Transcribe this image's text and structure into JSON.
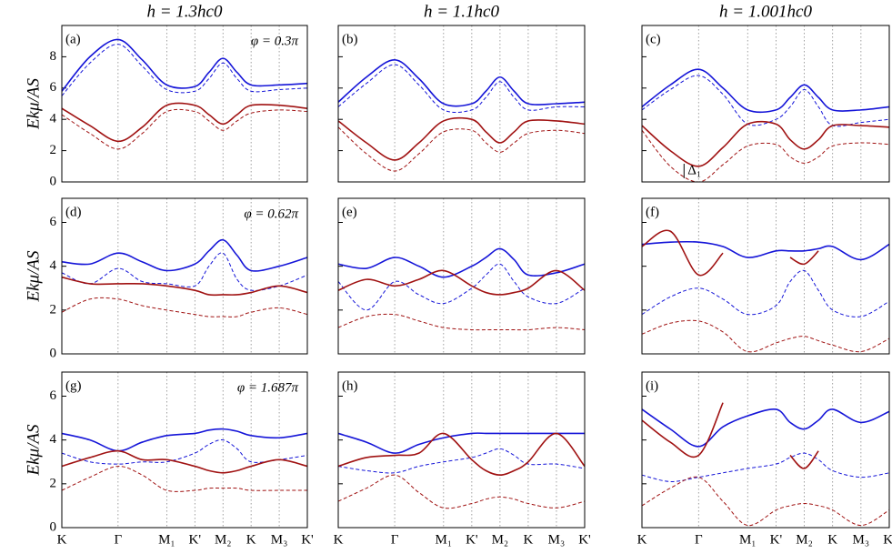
{
  "chart_data": [
    {
      "type": "line",
      "panel": "(a)",
      "title": "h = 1.3hc0",
      "ylabel": "Ekμ/AS",
      "annotation": "φ = 0.3π",
      "x": [
        0,
        0.5,
        1,
        1.43,
        1.866,
        2.366,
        2.616,
        2.866,
        3.116,
        3.366,
        3.866,
        4.366
      ],
      "xlim": [
        0,
        4.366
      ],
      "xticks": [
        0,
        1,
        1.866,
        2.366,
        2.866,
        3.366,
        3.866,
        4.366
      ],
      "ylim": [
        0,
        10
      ],
      "yticks": [
        0,
        2,
        4,
        6,
        8
      ],
      "series": [
        {
          "color": "#1515d8",
          "dashed": false,
          "values": [
            5.8,
            8,
            9.1,
            7.8,
            6.2,
            6.1,
            7.0,
            7.9,
            7.0,
            6.2,
            6.2,
            6.3
          ]
        },
        {
          "color": "#1515d8",
          "dashed": true,
          "values": [
            5.5,
            7.6,
            8.8,
            7.4,
            5.9,
            5.8,
            6.6,
            7.6,
            6.6,
            5.8,
            5.9,
            6.0
          ]
        },
        {
          "color": "#a01212",
          "dashed": false,
          "values": [
            4.7,
            3.6,
            2.6,
            3.5,
            4.9,
            4.9,
            4.3,
            3.7,
            4.3,
            4.9,
            4.9,
            4.7
          ]
        },
        {
          "color": "#a01212",
          "dashed": true,
          "values": [
            4.3,
            3.1,
            2.1,
            3.1,
            4.5,
            4.5,
            3.9,
            3.3,
            3.9,
            4.4,
            4.6,
            4.5
          ]
        }
      ]
    },
    {
      "type": "line",
      "panel": "(b)",
      "title": "h = 1.1hc0",
      "x": [
        0,
        0.5,
        1,
        1.43,
        1.866,
        2.366,
        2.616,
        2.866,
        3.116,
        3.366,
        3.866,
        4.366
      ],
      "xlim": [
        0,
        4.366
      ],
      "xticks": [
        0,
        1,
        1.866,
        2.366,
        2.866,
        3.366,
        3.866,
        4.366
      ],
      "ylim": [
        0,
        10
      ],
      "yticks": [
        0,
        2,
        4,
        6,
        8
      ],
      "series": [
        {
          "color": "#1515d8",
          "dashed": false,
          "values": [
            5.1,
            6.7,
            7.8,
            6.6,
            5.0,
            5.0,
            5.8,
            6.7,
            5.8,
            5.0,
            5.0,
            5.1
          ]
        },
        {
          "color": "#1515d8",
          "dashed": true,
          "values": [
            4.8,
            6.3,
            7.5,
            6.2,
            4.6,
            4.6,
            5.4,
            6.4,
            5.4,
            4.6,
            4.8,
            4.8
          ]
        },
        {
          "color": "#a01212",
          "dashed": false,
          "values": [
            3.9,
            2.5,
            1.4,
            2.5,
            3.9,
            4.0,
            3.2,
            2.5,
            3.2,
            3.9,
            3.9,
            3.7
          ]
        },
        {
          "color": "#a01212",
          "dashed": true,
          "values": [
            3.5,
            1.8,
            0.7,
            1.8,
            3.2,
            3.3,
            2.5,
            1.9,
            2.5,
            3.1,
            3.3,
            3.1
          ]
        }
      ]
    },
    {
      "type": "line",
      "panel": "(c)",
      "title": "h = 1.001hc0",
      "marker_label": "Δ₁",
      "x": [
        0,
        0.5,
        1,
        1.43,
        1.866,
        2.366,
        2.616,
        2.866,
        3.116,
        3.366,
        3.866,
        4.366
      ],
      "xlim": [
        0,
        4.366
      ],
      "xticks": [
        0,
        1,
        1.866,
        2.366,
        2.866,
        3.366,
        3.866,
        4.366
      ],
      "ylim": [
        0,
        10
      ],
      "yticks": [
        0,
        2,
        4,
        6,
        8
      ],
      "series": [
        {
          "color": "#1515d8",
          "dashed": false,
          "values": [
            4.8,
            6.2,
            7.2,
            6.0,
            4.6,
            4.6,
            5.4,
            6.2,
            5.4,
            4.6,
            4.6,
            4.8
          ]
        },
        {
          "color": "#1515d8",
          "dashed": true,
          "values": [
            4.6,
            5.9,
            6.8,
            5.6,
            3.7,
            4.0,
            4.8,
            5.9,
            4.8,
            3.6,
            3.8,
            4.0
          ]
        },
        {
          "color": "#a01212",
          "dashed": false,
          "values": [
            3.6,
            2.0,
            1.0,
            2.2,
            3.7,
            3.7,
            2.7,
            2.1,
            2.7,
            3.6,
            3.6,
            3.5
          ]
        },
        {
          "color": "#a01212",
          "dashed": true,
          "values": [
            3.3,
            1.0,
            0,
            1.1,
            2.3,
            2.4,
            1.6,
            1.2,
            1.6,
            2.3,
            2.5,
            2.4
          ]
        }
      ]
    },
    {
      "type": "line",
      "panel": "(d)",
      "ylabel": "Ekμ/AS",
      "annotation": "φ = 0.62π",
      "x": [
        0,
        0.5,
        1,
        1.43,
        1.866,
        2.366,
        2.616,
        2.866,
        3.116,
        3.366,
        3.866,
        4.366
      ],
      "xlim": [
        0,
        4.366
      ],
      "xticks": [
        0,
        1,
        1.866,
        2.366,
        2.866,
        3.366,
        3.866,
        4.366
      ],
      "ylim": [
        0,
        7.1
      ],
      "yticks": [
        0,
        2,
        4,
        6
      ],
      "series": [
        {
          "color": "#1515d8",
          "dashed": false,
          "values": [
            4.2,
            4.1,
            4.6,
            4.2,
            3.8,
            4.1,
            4.7,
            5.2,
            4.5,
            3.8,
            4.0,
            4.4
          ]
        },
        {
          "color": "#1515d8",
          "dashed": true,
          "values": [
            3.7,
            3.2,
            3.9,
            3.3,
            3.2,
            3.1,
            4.0,
            4.6,
            3.4,
            2.9,
            3.1,
            3.6
          ]
        },
        {
          "color": "#a01212",
          "dashed": false,
          "values": [
            3.5,
            3.2,
            3.2,
            3.2,
            3.1,
            2.9,
            2.7,
            2.7,
            2.7,
            2.8,
            3.1,
            2.8
          ]
        },
        {
          "color": "#a01212",
          "dashed": true,
          "values": [
            1.9,
            2.5,
            2.5,
            2.2,
            2.0,
            1.8,
            1.7,
            1.7,
            1.7,
            1.9,
            2.1,
            1.8
          ]
        }
      ]
    },
    {
      "type": "line",
      "panel": "(e)",
      "x": [
        0,
        0.5,
        1,
        1.43,
        1.866,
        2.366,
        2.616,
        2.866,
        3.116,
        3.366,
        3.866,
        4.366
      ],
      "xlim": [
        0,
        4.366
      ],
      "xticks": [
        0,
        1,
        1.866,
        2.366,
        2.866,
        3.366,
        3.866,
        4.366
      ],
      "ylim": [
        0,
        7.1
      ],
      "yticks": [
        0,
        2,
        4,
        6
      ],
      "series": [
        {
          "color": "#1515d8",
          "dashed": false,
          "values": [
            4.1,
            3.9,
            4.4,
            4.0,
            3.5,
            4.0,
            4.4,
            4.8,
            4.3,
            3.6,
            3.7,
            4.1
          ]
        },
        {
          "color": "#1515d8",
          "dashed": true,
          "values": [
            3.3,
            2.0,
            3.3,
            2.7,
            2.3,
            3.0,
            3.6,
            4.1,
            3.3,
            2.6,
            2.3,
            3.0
          ]
        },
        {
          "color": "#a01212",
          "dashed": false,
          "values": [
            2.9,
            3.4,
            3.1,
            3.4,
            3.8,
            3.1,
            2.8,
            2.7,
            2.8,
            3.0,
            3.8,
            2.9
          ]
        },
        {
          "color": "#a01212",
          "dashed": true,
          "values": [
            1.2,
            1.7,
            1.8,
            1.5,
            1.2,
            1.1,
            1.1,
            1.1,
            1.1,
            1.1,
            1.2,
            1.1
          ]
        }
      ]
    },
    {
      "type": "line",
      "panel": "(f)",
      "x": [
        0,
        0.5,
        1,
        1.43,
        1.866,
        2.366,
        2.616,
        2.866,
        3.116,
        3.366,
        3.866,
        4.366
      ],
      "xlim": [
        0,
        4.366
      ],
      "xticks": [
        0,
        1,
        1.866,
        2.366,
        2.866,
        3.366,
        3.866,
        4.366
      ],
      "ylim": [
        0,
        7.1
      ],
      "yticks": [
        0,
        2,
        4,
        6
      ],
      "series": [
        {
          "color": "#1515d8",
          "dashed": false,
          "values": [
            5.0,
            5.1,
            5.1,
            4.9,
            4.4,
            4.7,
            4.7,
            4.7,
            4.8,
            4.9,
            4.3,
            5.0
          ]
        },
        {
          "color": "#1515d8",
          "dashed": true,
          "values": [
            1.8,
            2.6,
            3.0,
            2.5,
            1.8,
            2.2,
            3.3,
            3.8,
            2.9,
            2.0,
            1.7,
            2.4
          ]
        },
        {
          "color": "#a01212",
          "dashed": false,
          "values": [
            4.9,
            5.6,
            3.6,
            4.6,
            null,
            null,
            4.4,
            4.1,
            4.7,
            null,
            null,
            null
          ]
        },
        {
          "color": "#a01212",
          "dashed": true,
          "values": [
            0.9,
            1.4,
            1.5,
            1.0,
            0.1,
            0.5,
            0.7,
            0.8,
            0.6,
            0.4,
            0.1,
            0.7
          ]
        }
      ]
    },
    {
      "type": "line",
      "panel": "(g)",
      "ylabel": "Ekμ/AS",
      "annotation": "φ = 1.687π",
      "x": [
        0,
        0.5,
        1,
        1.43,
        1.866,
        2.366,
        2.616,
        2.866,
        3.116,
        3.366,
        3.866,
        4.366
      ],
      "xlim": [
        0,
        4.366
      ],
      "xticks": [
        {
          "value": 0,
          "label": "K"
        },
        {
          "value": 1,
          "label": "Γ"
        },
        {
          "value": 1.866,
          "label": "M₁"
        },
        {
          "value": 2.366,
          "label": "K'"
        },
        {
          "value": 2.866,
          "label": "M₂"
        },
        {
          "value": 3.366,
          "label": "K"
        },
        {
          "value": 3.866,
          "label": "M₃"
        },
        {
          "value": 4.366,
          "label": "K'"
        }
      ],
      "ylim": [
        0,
        7.1
      ],
      "yticks": [
        0,
        2,
        4,
        6
      ],
      "series": [
        {
          "color": "#1515d8",
          "dashed": false,
          "values": [
            4.3,
            4.0,
            3.5,
            3.9,
            4.2,
            4.3,
            4.45,
            4.5,
            4.4,
            4.2,
            4.1,
            4.3
          ]
        },
        {
          "color": "#1515d8",
          "dashed": true,
          "values": [
            3.4,
            3.0,
            2.9,
            3.0,
            3.0,
            3.4,
            3.8,
            4.0,
            3.6,
            3.0,
            3.1,
            3.3
          ]
        },
        {
          "color": "#a01212",
          "dashed": false,
          "values": [
            2.8,
            3.2,
            3.5,
            3.1,
            3.1,
            2.8,
            2.6,
            2.5,
            2.6,
            2.8,
            3.1,
            2.8
          ]
        },
        {
          "color": "#a01212",
          "dashed": true,
          "values": [
            1.7,
            2.3,
            2.8,
            2.4,
            1.7,
            1.7,
            1.8,
            1.8,
            1.8,
            1.7,
            1.7,
            1.7
          ]
        }
      ]
    },
    {
      "type": "line",
      "panel": "(h)",
      "x": [
        0,
        0.5,
        1,
        1.43,
        1.866,
        2.366,
        2.616,
        2.866,
        3.116,
        3.366,
        3.866,
        4.366
      ],
      "xlim": [
        0,
        4.366
      ],
      "xticks": [
        {
          "value": 0,
          "label": "K"
        },
        {
          "value": 1,
          "label": "Γ"
        },
        {
          "value": 1.866,
          "label": "M₁"
        },
        {
          "value": 2.366,
          "label": "K'"
        },
        {
          "value": 2.866,
          "label": "M₂"
        },
        {
          "value": 3.366,
          "label": "K"
        },
        {
          "value": 3.866,
          "label": "M₃"
        },
        {
          "value": 4.366,
          "label": "K'"
        }
      ],
      "ylim": [
        0,
        7.1
      ],
      "yticks": [
        0,
        2,
        4,
        6
      ],
      "series": [
        {
          "color": "#1515d8",
          "dashed": false,
          "values": [
            4.3,
            3.9,
            3.4,
            3.8,
            4.1,
            4.3,
            4.3,
            4.3,
            4.3,
            4.3,
            4.3,
            4.3
          ]
        },
        {
          "color": "#1515d8",
          "dashed": true,
          "values": [
            2.8,
            2.6,
            2.5,
            2.8,
            3.0,
            3.2,
            3.4,
            3.6,
            3.3,
            2.9,
            2.9,
            2.7
          ]
        },
        {
          "color": "#a01212",
          "dashed": false,
          "values": [
            2.8,
            3.2,
            3.3,
            3.4,
            4.3,
            3.1,
            2.6,
            2.4,
            2.6,
            3.0,
            4.3,
            2.8
          ]
        },
        {
          "color": "#a01212",
          "dashed": true,
          "values": [
            1.2,
            1.8,
            2.4,
            1.6,
            0.9,
            1.1,
            1.3,
            1.4,
            1.3,
            1.1,
            0.9,
            1.2
          ]
        }
      ]
    },
    {
      "type": "line",
      "panel": "(i)",
      "x": [
        0,
        0.5,
        1,
        1.43,
        1.866,
        2.366,
        2.616,
        2.866,
        3.116,
        3.366,
        3.866,
        4.366
      ],
      "xlim": [
        0,
        4.366
      ],
      "xticks": [
        {
          "value": 0,
          "label": "K"
        },
        {
          "value": 1,
          "label": "Γ"
        },
        {
          "value": 1.866,
          "label": "M₁"
        },
        {
          "value": 2.366,
          "label": "K'"
        },
        {
          "value": 2.866,
          "label": "M₂"
        },
        {
          "value": 3.366,
          "label": "K"
        },
        {
          "value": 3.866,
          "label": "M₃"
        },
        {
          "value": 4.366,
          "label": "K'"
        }
      ],
      "ylim": [
        0,
        7.1
      ],
      "yticks": [
        0,
        2,
        4,
        6
      ],
      "series": [
        {
          "color": "#1515d8",
          "dashed": false,
          "values": [
            5.4,
            4.5,
            3.7,
            4.6,
            5.1,
            5.4,
            4.8,
            4.5,
            4.9,
            5.4,
            4.8,
            5.3
          ]
        },
        {
          "color": "#1515d8",
          "dashed": true,
          "values": [
            2.4,
            2.1,
            2.3,
            2.5,
            2.7,
            2.9,
            3.2,
            3.4,
            3.1,
            2.6,
            2.3,
            2.5
          ]
        },
        {
          "color": "#a01212",
          "dashed": false,
          "values": [
            4.9,
            3.9,
            3.3,
            5.7,
            null,
            null,
            3.3,
            2.7,
            3.5,
            null,
            null,
            null
          ]
        },
        {
          "color": "#a01212",
          "dashed": true,
          "values": [
            1.0,
            1.8,
            2.3,
            1.2,
            0.1,
            0.8,
            1.0,
            1.1,
            1.0,
            0.8,
            0.1,
            0.8
          ]
        }
      ]
    }
  ]
}
